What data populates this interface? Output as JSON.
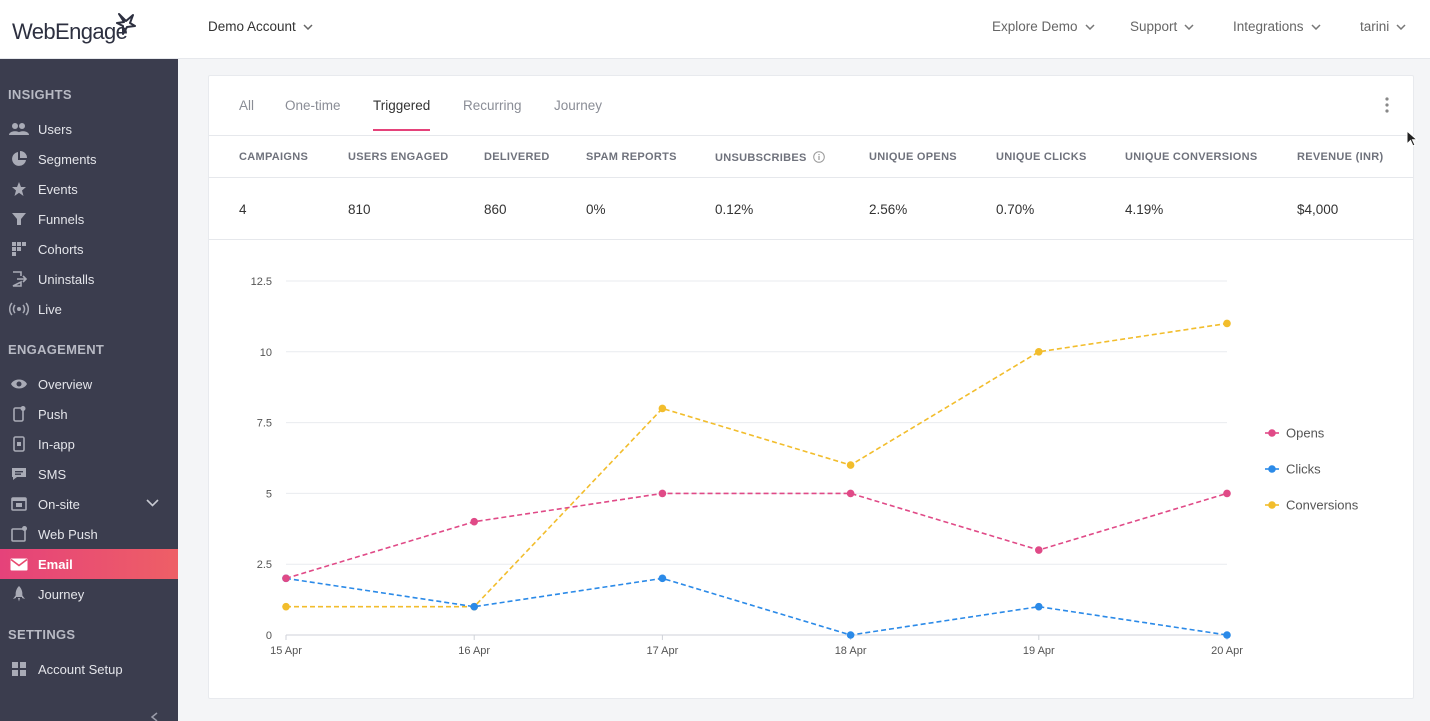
{
  "app": {
    "logo_text": "WebEngage"
  },
  "header": {
    "account": "Demo Account",
    "nav": [
      "Explore Demo",
      "Support",
      "Integrations",
      "tarini"
    ]
  },
  "sidebar": {
    "sections": [
      {
        "title": "INSIGHTS",
        "items": [
          {
            "label": "Users",
            "icon": "users-icon"
          },
          {
            "label": "Segments",
            "icon": "segments-icon"
          },
          {
            "label": "Events",
            "icon": "events-icon"
          },
          {
            "label": "Funnels",
            "icon": "funnels-icon"
          },
          {
            "label": "Cohorts",
            "icon": "cohorts-icon"
          },
          {
            "label": "Uninstalls",
            "icon": "uninstalls-icon"
          },
          {
            "label": "Live",
            "icon": "live-icon"
          }
        ]
      },
      {
        "title": "ENGAGEMENT",
        "items": [
          {
            "label": "Overview",
            "icon": "eye-icon"
          },
          {
            "label": "Push",
            "icon": "push-icon"
          },
          {
            "label": "In-app",
            "icon": "in-app-icon"
          },
          {
            "label": "SMS",
            "icon": "sms-icon"
          },
          {
            "label": "On-site",
            "icon": "on-site-icon"
          },
          {
            "label": "Web Push",
            "icon": "web-push-icon"
          },
          {
            "label": "Email",
            "icon": "email-icon",
            "active": true
          },
          {
            "label": "Journey",
            "icon": "journey-icon"
          }
        ]
      },
      {
        "title": "SETTINGS",
        "items": [
          {
            "label": "Account Setup",
            "icon": "account-setup-icon"
          }
        ]
      }
    ]
  },
  "tabs": [
    {
      "label": "All"
    },
    {
      "label": "One-time"
    },
    {
      "label": "Triggered",
      "active": true
    },
    {
      "label": "Recurring"
    },
    {
      "label": "Journey"
    }
  ],
  "stats": {
    "headers": [
      "CAMPAIGNS",
      "USERS ENGAGED",
      "DELIVERED",
      "SPAM REPORTS",
      "UNSUBSCRIBES",
      "UNIQUE OPENS",
      "UNIQUE CLICKS",
      "UNIQUE CONVERSIONS",
      "REVENUE (INR)"
    ],
    "values": [
      "4",
      "810",
      "860",
      "0%",
      "0.12%",
      "2.56%",
      "0.70%",
      "4.19%",
      "$4,000"
    ]
  },
  "colors": {
    "accent": "#e5427a",
    "opens": "#e04a87",
    "clicks": "#2b8ae8",
    "conversions": "#f2bd2c"
  },
  "chart_data": {
    "type": "line",
    "categories": [
      "15 Apr",
      "16 Apr",
      "17 Apr",
      "18 Apr",
      "19 Apr",
      "20 Apr"
    ],
    "y_ticks": [
      "0",
      "2.5",
      "5",
      "7.5",
      "10",
      "12.5"
    ],
    "ylim": [
      0,
      12.5
    ],
    "grid": true,
    "line_style": "dashed",
    "legend_position": "right",
    "series": [
      {
        "name": "Opens",
        "values": [
          2,
          4,
          5,
          5,
          3,
          5
        ]
      },
      {
        "name": "Clicks",
        "values": [
          2,
          1,
          2,
          0,
          1,
          0
        ]
      },
      {
        "name": "Conversions",
        "values": [
          1,
          1,
          8,
          6,
          10,
          11
        ]
      }
    ]
  }
}
